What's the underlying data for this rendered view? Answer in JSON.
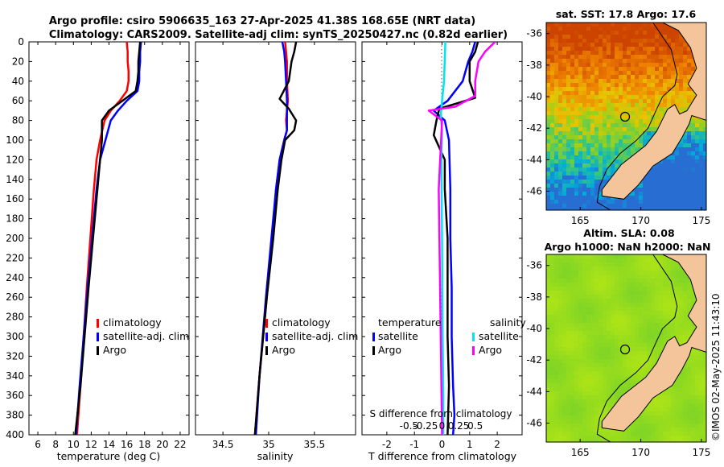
{
  "title": {
    "line1": "Argo profile: csiro 5906635_163 27-Apr-2025 41.38S 168.65E (NRT data)",
    "line2": "Climatology: CARS2009. Satellite-adj clim: synTS_20250427.nc (0.82d earlier)"
  },
  "colors": {
    "climatology": "#ff0000",
    "satellite": "#0000ff",
    "argo": "#000000",
    "salinity_sat": "#00e5ee",
    "salinity_argo": "#ff00ff",
    "land": "#f4c49a"
  },
  "chart_data": [
    {
      "type": "line",
      "id": "temperature",
      "xlabel": "temperature (deg C)",
      "ylabel": "",
      "xlim": [
        5,
        23
      ],
      "ylim": [
        0,
        400
      ],
      "y_inverted": true,
      "xticks": [
        "6",
        "8",
        "10",
        "12",
        "14",
        "16",
        "18",
        "20",
        "22"
      ],
      "yticks": [
        "0",
        "20",
        "40",
        "60",
        "80",
        "100",
        "120",
        "140",
        "160",
        "180",
        "200",
        "220",
        "240",
        "260",
        "280",
        "300",
        "320",
        "340",
        "360",
        "380",
        "400"
      ],
      "legend": [
        "climatology",
        "satellite-adj. clim",
        "Argo"
      ],
      "series": [
        {
          "name": "climatology",
          "x": [
            16.0,
            16.1,
            16.1,
            16.2,
            16.2,
            16.0,
            15.2,
            14.2,
            13.5,
            13.0,
            12.6,
            12.3,
            11.5,
            10.8,
            10.4
          ],
          "y": [
            0,
            10,
            20,
            30,
            40,
            50,
            60,
            70,
            80,
            100,
            120,
            150,
            250,
            350,
            400
          ]
        },
        {
          "name": "satellite-adj. clim",
          "x": [
            17.6,
            17.5,
            17.5,
            17.4,
            17.4,
            17.2,
            16.0,
            15.0,
            14.2,
            13.6,
            13.0,
            12.6,
            11.6,
            10.7,
            10.3
          ],
          "y": [
            0,
            10,
            20,
            30,
            40,
            50,
            60,
            70,
            80,
            100,
            120,
            150,
            250,
            350,
            400
          ]
        },
        {
          "name": "Argo",
          "x": [
            17.5,
            17.4,
            17.3,
            17.3,
            17.2,
            17.0,
            15.5,
            14.0,
            13.2,
            13.2,
            13.0,
            12.7,
            11.7,
            10.8,
            10.2
          ],
          "y": [
            0,
            10,
            20,
            30,
            40,
            50,
            60,
            70,
            80,
            100,
            120,
            150,
            250,
            350,
            400
          ]
        }
      ]
    },
    {
      "type": "line",
      "id": "salinity",
      "xlabel": "salinity",
      "xlim": [
        34.2,
        35.95
      ],
      "ylim": [
        0,
        400
      ],
      "y_inverted": true,
      "xticks": [
        "34.5",
        "35",
        "35.5"
      ],
      "legend": [
        "climatology",
        "satellite-adj. clim",
        "Argo"
      ],
      "series": [
        {
          "name": "climatology",
          "x": [
            35.18,
            35.19,
            35.2,
            35.2,
            35.21,
            35.2,
            35.19,
            35.2,
            35.17,
            35.12,
            35.08,
            35.04,
            34.98,
            34.9,
            34.85
          ],
          "y": [
            0,
            10,
            20,
            40,
            60,
            70,
            80,
            90,
            100,
            120,
            150,
            200,
            260,
            340,
            400
          ]
        },
        {
          "name": "satellite-adj. clim",
          "x": [
            35.15,
            35.17,
            35.18,
            35.19,
            35.2,
            35.2,
            35.2,
            35.2,
            35.17,
            35.12,
            35.08,
            35.03,
            34.97,
            34.9,
            34.86
          ],
          "y": [
            0,
            10,
            20,
            40,
            60,
            70,
            80,
            90,
            100,
            120,
            150,
            200,
            260,
            340,
            400
          ]
        },
        {
          "name": "Argo",
          "x": [
            35.3,
            35.28,
            35.25,
            35.22,
            35.12,
            35.22,
            35.3,
            35.28,
            35.18,
            35.14,
            35.1,
            35.05,
            34.98,
            34.9,
            34.85
          ],
          "y": [
            0,
            10,
            20,
            40,
            58,
            68,
            80,
            90,
            100,
            120,
            150,
            200,
            260,
            340,
            400
          ]
        }
      ]
    },
    {
      "type": "line",
      "id": "differences",
      "xlabel": "T difference from climatology",
      "xlabel_top": "S difference from climatology",
      "xlim": [
        -2.9,
        2.9
      ],
      "ylim": [
        0,
        400
      ],
      "y_inverted": true,
      "xticks": [
        "-2",
        "-1",
        "0",
        "1",
        "2"
      ],
      "sticks": [
        "-0.5",
        "-0.25",
        "0",
        "0.25",
        "0.5"
      ],
      "legend_temperature_title": "temperature",
      "legend_salinity_title": "salinity",
      "legend_temperature": [
        "satellite",
        "Argo"
      ],
      "legend_salinity": [
        "satellite",
        "Argo"
      ],
      "series": [
        {
          "name": "T satellite",
          "x": [
            1.2,
            1.1,
            0.95,
            0.75,
            0.2,
            -0.3,
            0.1,
            0.25,
            0.3,
            0.3,
            0.35,
            0.35,
            0.4,
            0.45,
            0.4
          ],
          "y": [
            0,
            10,
            20,
            40,
            60,
            70,
            80,
            100,
            150,
            200,
            250,
            300,
            350,
            380,
            400
          ]
        },
        {
          "name": "T Argo",
          "x": [
            1.3,
            1.2,
            1.0,
            1.0,
            1.2,
            -0.1,
            -0.2,
            -0.3,
            0.1,
            0.1,
            0.2,
            0.2,
            0.2,
            0.25,
            0.2
          ],
          "y": [
            0,
            10,
            20,
            40,
            57,
            68,
            80,
            95,
            120,
            150,
            200,
            250,
            300,
            350,
            400
          ]
        },
        {
          "name": "S satellite",
          "x": [
            0.05,
            0.04,
            0.03,
            0.0,
            -0.02,
            0.0,
            -0.01,
            0.0,
            0.01,
            0.02,
            0.02
          ],
          "y": [
            0,
            20,
            40,
            60,
            75,
            90,
            120,
            200,
            300,
            360,
            400
          ]
        },
        {
          "name": "S Argo",
          "x": [
            0.8,
            0.65,
            0.55,
            0.5,
            0.5,
            0.2,
            -0.2,
            0.0,
            -0.05,
            -0.02,
            0.0
          ],
          "y": [
            0,
            10,
            20,
            40,
            55,
            66,
            70,
            80,
            150,
            300,
            400
          ]
        }
      ]
    }
  ],
  "maps": {
    "sst": {
      "title": "sat. SST: 17.8 Argo: 17.6",
      "xticks": [
        "165",
        "170",
        "175"
      ],
      "yticks": [
        "-36",
        "-38",
        "-40",
        "-42",
        "-44",
        "-46"
      ]
    },
    "sla": {
      "title1": "Altim. SLA: 0.08",
      "title2": "Argo h1000: NaN h2000: NaN",
      "xticks": [
        "165",
        "170",
        "175"
      ],
      "yticks": [
        "-36",
        "-38",
        "-40",
        "-42",
        "-44",
        "-46"
      ]
    },
    "watermark": "©IMOS 02-May-2025 11:43:10"
  }
}
